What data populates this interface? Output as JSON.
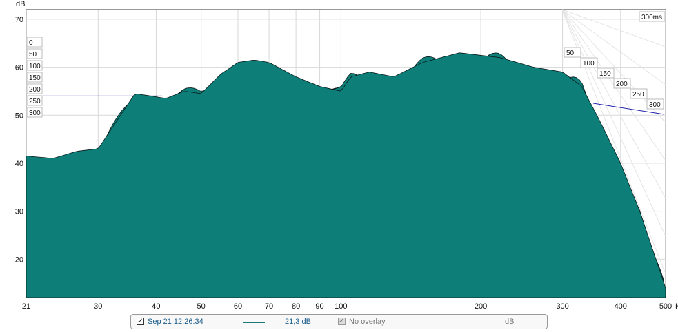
{
  "chart_data": {
    "type": "area",
    "chart_kind": "waterfall / cumulative spectral decay",
    "ylabel": "dB",
    "xunit": "Hz",
    "xscale": "log",
    "xlim": [
      21,
      500
    ],
    "ylim": [
      12,
      72
    ],
    "x_ticks": [
      "21",
      "30",
      "40",
      "50",
      "60",
      "70",
      "80",
      "90",
      "100",
      "200",
      "300",
      "400",
      "500"
    ],
    "y_ticks": [
      "20",
      "30",
      "40",
      "50",
      "60",
      "70"
    ],
    "time_axis_max_label": "300ms",
    "time_labels_left": [
      "0",
      "50",
      "100",
      "150",
      "200",
      "250",
      "300"
    ],
    "time_labels_right": [
      "50",
      "100",
      "150",
      "200",
      "250",
      "300"
    ],
    "fill_color": "#0e7e79",
    "line_color": "#0a1a1a",
    "reference_line_color": "#2222aa",
    "reference_level_db": 54,
    "front_slice_profile": [
      [
        21,
        41.5
      ],
      [
        24,
        41
      ],
      [
        27,
        42.5
      ],
      [
        30,
        43
      ],
      [
        33,
        49
      ],
      [
        36,
        54.5
      ],
      [
        39,
        54
      ],
      [
        42,
        53.5
      ],
      [
        46,
        55
      ],
      [
        50,
        54.5
      ],
      [
        55,
        58.5
      ],
      [
        60,
        61
      ],
      [
        65,
        61.5
      ],
      [
        70,
        61
      ],
      [
        80,
        58
      ],
      [
        90,
        56
      ],
      [
        100,
        55
      ],
      [
        105,
        58
      ],
      [
        115,
        59
      ],
      [
        130,
        58
      ],
      [
        150,
        61
      ],
      [
        180,
        63
      ],
      [
        220,
        62
      ],
      [
        260,
        60
      ],
      [
        300,
        59
      ],
      [
        330,
        56
      ],
      [
        360,
        49
      ],
      [
        400,
        40
      ],
      [
        440,
        30
      ],
      [
        500,
        14
      ]
    ],
    "grid": true
  },
  "legend": {
    "checked_mark": "✓",
    "measurement_name": "Sep 21 12:26:34",
    "level": "21,3 dB",
    "overlay_mark": "✓",
    "overlay_label": "No overlay",
    "unit": "dB"
  }
}
